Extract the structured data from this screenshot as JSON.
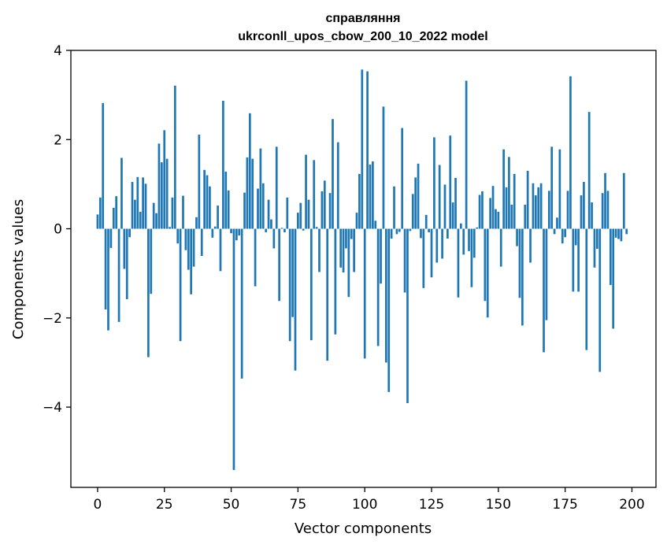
{
  "chart_data": {
    "type": "bar",
    "title": "справляння",
    "subtitle": "ukrconll_upos_cbow_200_10_2022 model",
    "xlabel": "Vector components",
    "ylabel": "Components values",
    "xlim": [
      -10,
      209
    ],
    "ylim": [
      -5.8,
      4.0
    ],
    "xticks": [
      0,
      25,
      50,
      75,
      100,
      125,
      150,
      175,
      200
    ],
    "yticks": [
      -4,
      -2,
      0,
      2,
      4
    ],
    "ytick_labels": [
      "−4",
      "−2",
      "0",
      "2",
      "4"
    ],
    "bar_color": "#1f77b4",
    "values": [
      0.32,
      0.7,
      2.82,
      -1.81,
      -2.28,
      -0.43,
      0.47,
      0.73,
      -2.09,
      1.59,
      -0.9,
      -1.58,
      -0.19,
      1.05,
      0.65,
      1.16,
      0.38,
      1.15,
      1.01,
      -2.88,
      -1.46,
      0.58,
      0.35,
      1.91,
      1.49,
      2.21,
      1.57,
      0.04,
      0.7,
      3.21,
      -0.33,
      -2.52,
      0.74,
      -0.48,
      -0.92,
      -1.47,
      -0.85,
      0.26,
      2.11,
      -0.61,
      1.32,
      1.2,
      0.95,
      -0.2,
      0.05,
      0.52,
      -0.95,
      2.87,
      1.28,
      0.86,
      -0.1,
      -5.41,
      -0.26,
      -0.15,
      -3.36,
      0.81,
      1.6,
      2.59,
      1.57,
      -1.29,
      0.9,
      1.8,
      1.02,
      -0.08,
      0.65,
      0.21,
      -0.44,
      1.84,
      -1.62,
      0.02,
      -0.08,
      0.7,
      -2.52,
      -1.98,
      -3.18,
      0.36,
      0.58,
      -0.04,
      1.66,
      0.65,
      -2.5,
      1.54,
      0.04,
      -0.97,
      0.84,
      1.08,
      -2.96,
      0.8,
      2.46,
      -2.37,
      1.94,
      -0.87,
      -0.98,
      -0.44,
      -1.53,
      -0.23,
      -0.97,
      0.36,
      1.23,
      3.57,
      -2.91,
      3.53,
      1.44,
      1.51,
      0.18,
      -2.63,
      -1.23,
      2.74,
      -3.0,
      -3.66,
      -0.22,
      0.95,
      -0.12,
      -0.07,
      2.26,
      -1.43,
      -3.91,
      -0.05,
      0.78,
      1.15,
      1.46,
      -0.21,
      -1.33,
      0.31,
      -0.08,
      -1.09,
      2.05,
      -0.76,
      1.43,
      -0.67,
      0.99,
      -0.22,
      2.09,
      0.59,
      1.14,
      -1.54,
      0.12,
      -0.58,
      3.32,
      -0.5,
      -1.31,
      -0.65,
      0.03,
      0.76,
      0.84,
      -1.62,
      -1.99,
      0.69,
      0.96,
      0.44,
      0.38,
      -0.85,
      1.78,
      0.93,
      1.61,
      0.54,
      1.23,
      -0.39,
      -1.55,
      -2.17,
      0.54,
      1.3,
      -0.76,
      1.02,
      0.75,
      0.93,
      1.02,
      -2.77,
      -2.05,
      0.85,
      1.84,
      -0.12,
      0.25,
      1.78,
      -0.33,
      -0.19,
      0.85,
      3.42,
      -1.41,
      -0.37,
      -1.41,
      0.75,
      1.05,
      -2.72,
      2.62,
      0.59,
      -0.87,
      -0.45,
      -3.21,
      0.8,
      1.25,
      0.85,
      -1.26,
      -2.24,
      -0.2,
      -0.23,
      -0.28,
      1.25,
      -0.12
    ]
  }
}
